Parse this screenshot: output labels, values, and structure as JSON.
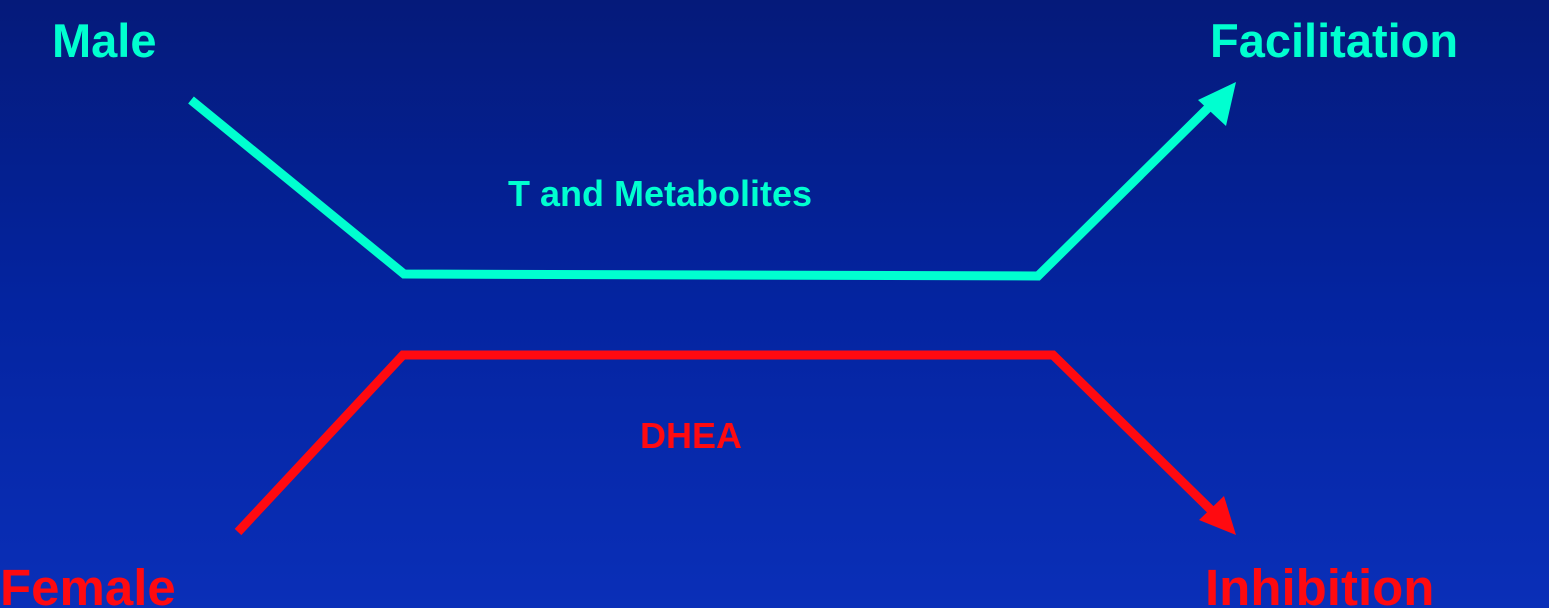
{
  "colors": {
    "background_top": "#051a7a",
    "background_bottom": "#0a2fb8",
    "male_pathway": "#00ffd0",
    "female_pathway": "#ff0a10"
  },
  "male_pathway": {
    "start_label": "Male",
    "end_label": "Facilitation",
    "pathway_label": "T and Metabolites"
  },
  "female_pathway": {
    "start_label": "Female",
    "end_label": "Inhibition",
    "pathway_label": "DHEA"
  }
}
